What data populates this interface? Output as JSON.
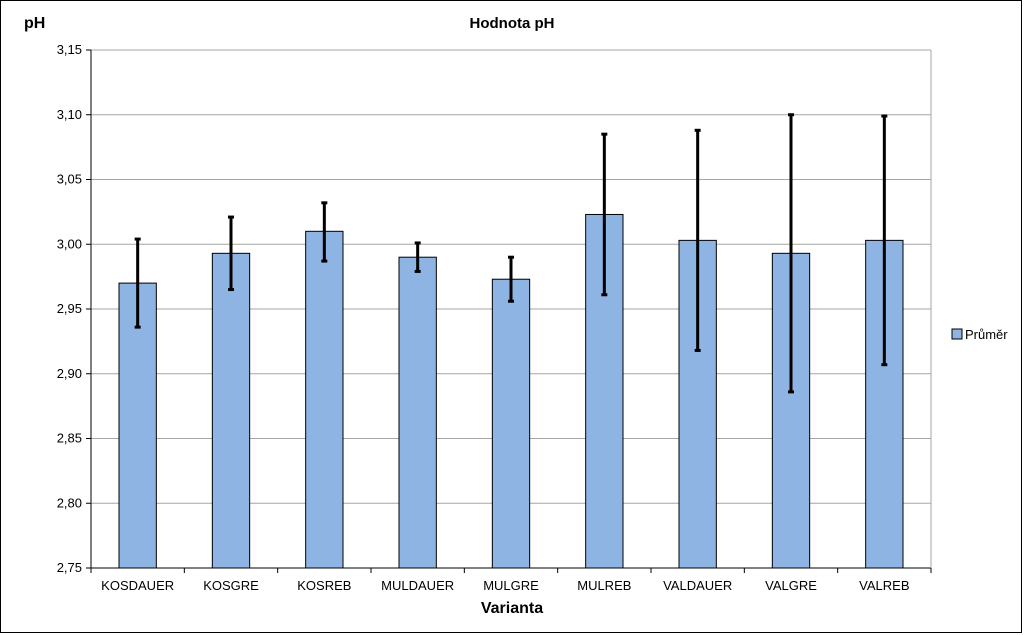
{
  "chart_data": {
    "type": "bar",
    "title": "Hodnota pH",
    "ylabel": "pH",
    "xlabel": "Varianta",
    "categories": [
      "KOSDAUER",
      "KOSGRE",
      "KOSREB",
      "MULDAUER",
      "MULGRE",
      "MULREB",
      "VALDAUER",
      "VALGRE",
      "VALREB"
    ],
    "series": [
      {
        "name": "Průměr",
        "values": [
          2.97,
          2.993,
          3.01,
          2.99,
          2.973,
          3.023,
          3.003,
          2.993,
          3.003
        ],
        "error_low": [
          2.936,
          2.965,
          2.987,
          2.979,
          2.956,
          2.961,
          2.918,
          2.886,
          2.907
        ],
        "error_high": [
          3.004,
          3.021,
          3.032,
          3.001,
          2.99,
          3.085,
          3.088,
          3.1,
          3.099
        ]
      }
    ],
    "ylim": [
      2.75,
      3.15
    ],
    "yticks": [
      "2,75",
      "2,80",
      "2,85",
      "2,90",
      "2,95",
      "3,00",
      "3,05",
      "3,10",
      "3,15"
    ],
    "ytick_values": [
      2.75,
      2.8,
      2.85,
      2.9,
      2.95,
      3.0,
      3.05,
      3.1,
      3.15
    ],
    "grid": true,
    "legend_position": "right",
    "colors": {
      "bar_fill": "#8eb4e3",
      "bar_stroke": "#000000",
      "grid": "#a6a6a6",
      "error": "#000000"
    }
  }
}
